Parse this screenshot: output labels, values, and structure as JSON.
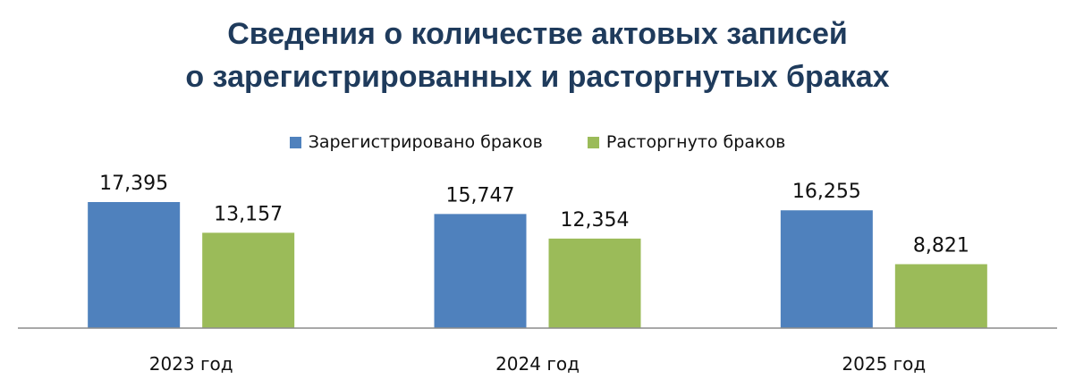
{
  "title_lines": [
    "Сведения о количестве актовых записей",
    "о зарегистрированных и расторгнутых браках"
  ],
  "chart_data": {
    "type": "bar",
    "categories": [
      "2023 год",
      "2024 год",
      "2025 год"
    ],
    "series": [
      {
        "name": "Зарегистрировано  браков",
        "color": "#4f81bd",
        "values": [
          17395,
          15747,
          16255
        ],
        "labels": [
          "17,395",
          "15,747",
          "16,255"
        ]
      },
      {
        "name": "Расторгнуто браков",
        "color": "#9bbb59",
        "values": [
          13157,
          12354,
          8821
        ],
        "labels": [
          "13,157",
          "12,354",
          "8,821"
        ]
      }
    ],
    "ylim": [
      0,
      19000
    ],
    "grid": false,
    "legend": "top-center"
  }
}
